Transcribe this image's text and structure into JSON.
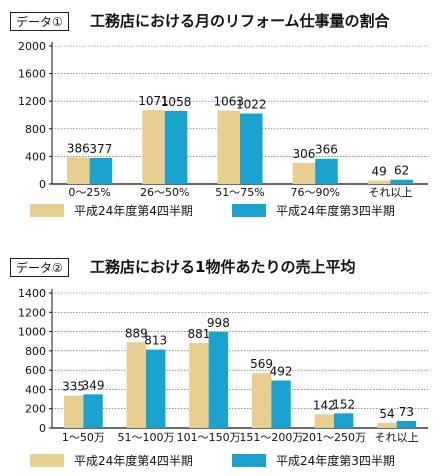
{
  "chart_data": [
    {
      "type": "bar",
      "badge": "データ①",
      "title": "工務店における月のリフォーム仕事量の割合",
      "categories": [
        "0〜25%",
        "26〜50%",
        "51〜75%",
        "76〜90%",
        "それ以上"
      ],
      "series": [
        {
          "name": "平成24年度第4四半期",
          "values": [
            386,
            1071,
            1063,
            306,
            49
          ],
          "color": "#e8cf90"
        },
        {
          "name": "平成24年度第3四半期",
          "values": [
            377,
            1058,
            1022,
            366,
            62
          ],
          "color": "#1aa3cf"
        }
      ],
      "ylim": [
        0,
        2000
      ],
      "yticks": [
        "0",
        "400",
        "800",
        "1200",
        "1600",
        "2000"
      ],
      "legend_position": "bottom"
    },
    {
      "type": "bar",
      "badge": "データ②",
      "title": "工務店における1物件あたりの売上平均",
      "categories": [
        "1〜50万",
        "51〜100万",
        "101〜150万",
        "151〜200万",
        "201〜250万",
        "それ以上"
      ],
      "series": [
        {
          "name": "平成24年度第4四半期",
          "values": [
            335,
            889,
            881,
            569,
            142,
            54
          ],
          "color": "#e8cf90"
        },
        {
          "name": "平成24年度第3四半期",
          "values": [
            349,
            813,
            998,
            492,
            152,
            73
          ],
          "color": "#1aa3cf"
        }
      ],
      "ylim": [
        0,
        1400
      ],
      "yticks": [
        "0",
        "200",
        "400",
        "600",
        "800",
        "1000",
        "1200",
        "1400"
      ],
      "legend_position": "bottom"
    }
  ]
}
